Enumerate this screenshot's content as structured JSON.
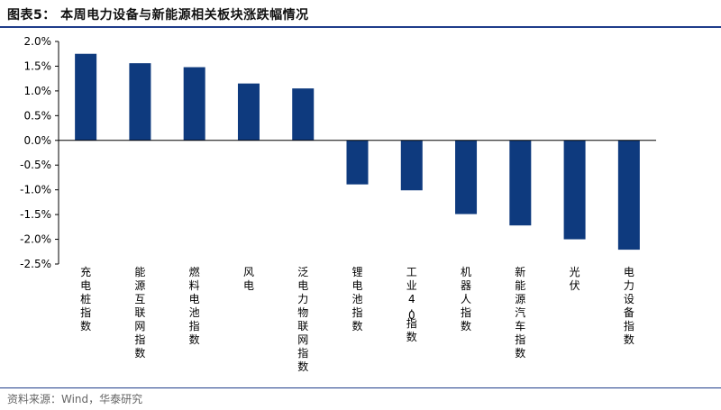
{
  "figure": {
    "title": "图表5：  本周电力设备与新能源相关板块涨跌幅情况",
    "source": "资料来源：Wind，华泰研究",
    "accent_color": "#1f3c8a",
    "bar_color": "#0e3a7e"
  },
  "chart_data": {
    "type": "bar",
    "categories": [
      "充电桩指数",
      "能源互联网指数",
      "燃料电池指数",
      "风电",
      "泛电力物联网指数",
      "锂电池指数",
      "工业4.0指数",
      "机器人指数",
      "新能源汽车指数",
      "光伏",
      "电力设备指数"
    ],
    "values": [
      1.75,
      1.56,
      1.48,
      1.15,
      1.05,
      -0.89,
      -1.01,
      -1.49,
      -1.72,
      -2.0,
      -2.21
    ],
    "ylim": [
      -2.5,
      2.0
    ],
    "yticks": [
      2.0,
      1.5,
      1.0,
      0.5,
      0.0,
      -0.5,
      -1.0,
      -1.5,
      -2.0,
      -2.5
    ],
    "ytick_labels": [
      "2.0%",
      "1.5%",
      "1.0%",
      "0.5%",
      "0.0%",
      "-0.5%",
      "-1.0%",
      "-1.5%",
      "-2.0%",
      "-2.5%"
    ],
    "grid": false,
    "legend": "none"
  }
}
